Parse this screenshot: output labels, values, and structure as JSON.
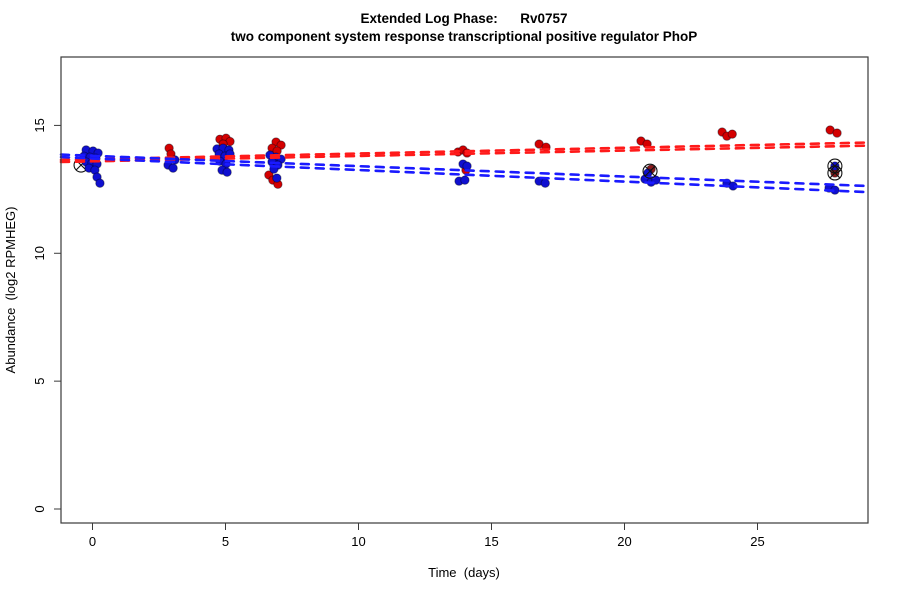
{
  "chart_data": {
    "type": "scatter",
    "title": "Extended Log Phase:      Rv0757",
    "subtitle": "two component system response transcriptional positive regulator PhoP",
    "xlabel": "Time  (days)",
    "ylabel": "Abundance  (log2 RPMHEG)",
    "xlim": [
      -1.184,
      29.154
    ],
    "ylim": [
      -0.547,
      17.675
    ],
    "xticks": [
      0,
      5,
      10,
      15,
      20,
      25
    ],
    "yticks": [
      0,
      5,
      10,
      15
    ],
    "grid": false,
    "legend": "none",
    "colors": {
      "red_points": "#d40000",
      "dark_red_points": "#8b1a1a",
      "blue_points": "#0f0fd0",
      "red_line": "#ff1a1a",
      "blue_line": "#1a1aff",
      "outlier_marker": "#111111",
      "box": "#3a3a3a"
    },
    "series": [
      {
        "name": "red-condition",
        "color": "#d40000",
        "points": [
          [
            -0.15,
            13.68
          ],
          [
            0.05,
            13.6
          ],
          [
            2.88,
            14.11
          ],
          [
            2.95,
            13.88
          ],
          [
            4.79,
            14.46
          ],
          [
            5.02,
            14.5
          ],
          [
            5.17,
            14.37
          ],
          [
            4.91,
            14.27
          ],
          [
            6.9,
            14.35
          ],
          [
            7.09,
            14.23
          ],
          [
            6.75,
            14.11
          ],
          [
            6.94,
            14.0
          ],
          [
            6.63,
            13.06
          ],
          [
            6.78,
            12.86
          ],
          [
            6.97,
            12.7
          ],
          [
            13.74,
            13.96
          ],
          [
            13.93,
            14.04
          ],
          [
            14.08,
            13.92
          ],
          [
            14.04,
            13.25
          ],
          [
            16.79,
            14.27
          ],
          [
            17.05,
            14.15
          ],
          [
            20.62,
            14.39
          ],
          [
            20.85,
            14.27
          ],
          [
            23.67,
            14.74
          ],
          [
            23.85,
            14.58
          ],
          [
            24.05,
            14.66
          ],
          [
            27.73,
            14.82
          ],
          [
            27.99,
            14.7
          ]
        ]
      },
      {
        "name": "red-condition-flagged",
        "color": "#8b1a1a",
        "points": [
          [
            21.0,
            13.29
          ],
          [
            27.91,
            13.14
          ]
        ]
      },
      {
        "name": "blue-condition",
        "color": "#0f0fd0",
        "points": [
          [
            -0.24,
            14.04
          ],
          [
            0.02,
            14.0
          ],
          [
            0.21,
            13.92
          ],
          [
            -0.32,
            13.8
          ],
          [
            -0.09,
            13.76
          ],
          [
            0.13,
            13.72
          ],
          [
            -0.24,
            13.57
          ],
          [
            -0.02,
            13.53
          ],
          [
            0.17,
            13.49
          ],
          [
            -0.13,
            13.33
          ],
          [
            0.09,
            13.25
          ],
          [
            0.17,
            12.98
          ],
          [
            0.28,
            12.74
          ],
          [
            3.1,
            13.65
          ],
          [
            2.84,
            13.45
          ],
          [
            3.03,
            13.33
          ],
          [
            4.68,
            14.08
          ],
          [
            4.91,
            14.11
          ],
          [
            5.13,
            14.04
          ],
          [
            4.76,
            13.88
          ],
          [
            4.98,
            13.8
          ],
          [
            5.17,
            13.88
          ],
          [
            4.79,
            13.6
          ],
          [
            5.02,
            13.49
          ],
          [
            4.87,
            13.25
          ],
          [
            5.06,
            13.17
          ],
          [
            6.67,
            13.84
          ],
          [
            6.9,
            13.76
          ],
          [
            7.09,
            13.68
          ],
          [
            6.75,
            13.57
          ],
          [
            6.97,
            13.45
          ],
          [
            6.82,
            13.29
          ],
          [
            6.93,
            12.94
          ],
          [
            13.93,
            13.49
          ],
          [
            14.08,
            13.41
          ],
          [
            13.78,
            12.82
          ],
          [
            14.0,
            12.86
          ],
          [
            16.79,
            12.82
          ],
          [
            17.02,
            12.74
          ],
          [
            20.88,
            13.14
          ],
          [
            20.77,
            12.9
          ],
          [
            21.0,
            12.78
          ],
          [
            21.18,
            12.86
          ],
          [
            23.85,
            12.74
          ],
          [
            24.08,
            12.63
          ],
          [
            27.91,
            13.41
          ],
          [
            27.69,
            12.55
          ],
          [
            27.91,
            12.47
          ]
        ]
      }
    ],
    "outlier_markers": {
      "shape": "circle-x",
      "points": [
        {
          "x": -0.43,
          "y": 13.45,
          "layer": "back"
        },
        {
          "x": 20.96,
          "y": 13.21,
          "layer": "front"
        },
        {
          "x": 27.91,
          "y": 13.41,
          "layer": "front"
        },
        {
          "x": 27.91,
          "y": 13.14,
          "layer": "front"
        }
      ]
    },
    "trend_lines": [
      {
        "name": "red-fit-1",
        "color": "#ff1a1a",
        "from": [
          -1.184,
          13.65
        ],
        "to": [
          29.154,
          14.33
        ]
      },
      {
        "name": "red-fit-2",
        "color": "#ff1a1a",
        "from": [
          -1.184,
          13.57
        ],
        "to": [
          29.154,
          14.21
        ]
      },
      {
        "name": "blue-fit-1",
        "color": "#1a1aff",
        "from": [
          -1.184,
          13.86
        ],
        "to": [
          29.154,
          12.63
        ]
      },
      {
        "name": "blue-fit-2",
        "color": "#1a1aff",
        "from": [
          -1.184,
          13.76
        ],
        "to": [
          29.154,
          12.39
        ]
      }
    ]
  }
}
